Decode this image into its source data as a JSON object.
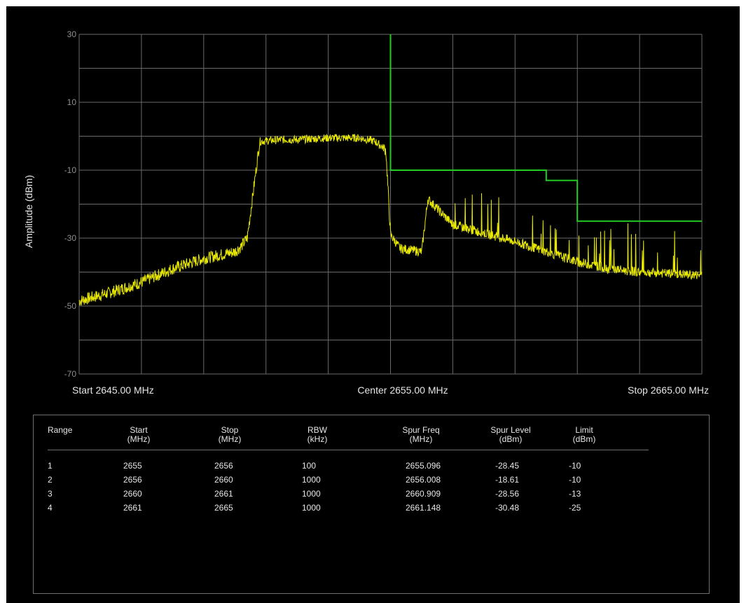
{
  "chart_data": {
    "type": "line",
    "ylabel": "Amplitude (dBm)",
    "ylim": [
      -70,
      30
    ],
    "yticks": [
      "30",
      "10",
      "-10",
      "-30",
      "-50",
      "-70"
    ],
    "xlim": [
      2645.0,
      2665.0
    ],
    "x_unit": "MHz",
    "grid": true,
    "x_labels": {
      "start": "Start 2645.00 MHz",
      "center": "Center 2655.00 MHz",
      "stop": "Stop 2665.00 MHz"
    },
    "series": [
      {
        "color": "#e8e800",
        "style": "noisy spectrum trace",
        "x": [
          2645.0,
          2646.0,
          2647.0,
          2648.0,
          2649.0,
          2650.0,
          2650.2,
          2650.4,
          2650.8,
          2651.5,
          2652.0,
          2653.0,
          2654.0,
          2654.5,
          2654.85,
          2655.0,
          2655.3,
          2656.0,
          2656.2,
          2657.0,
          2658.0,
          2659.0,
          2660.0,
          2661.0,
          2662.0,
          2663.0,
          2664.0,
          2665.0
        ],
        "y": [
          -48.5,
          -46,
          -43,
          -39,
          -36,
          -34,
          -32.5,
          -30,
          -1.5,
          -1,
          -1,
          -0.5,
          -0.5,
          -1.5,
          -4,
          -29,
          -33,
          -34,
          -18.5,
          -26,
          -28.5,
          -31,
          -34,
          -37,
          -39,
          -40,
          -40.5,
          -41
        ]
      },
      {
        "color": "#22cc22",
        "style": "limit line",
        "x": [
          2655.0,
          2655.0,
          2660.0,
          2660.0,
          2661.0,
          2661.0,
          2665.0
        ],
        "y": [
          30,
          -10,
          -10,
          -13,
          -13,
          -25,
          -25
        ]
      }
    ]
  },
  "results_table": {
    "headers": [
      [
        "Range",
        ""
      ],
      [
        "Start",
        "(MHz)"
      ],
      [
        "Stop",
        "(MHz)"
      ],
      [
        "RBW",
        "(kHz)"
      ],
      [
        "Spur Freq",
        "(MHz)"
      ],
      [
        "Spur Level",
        "(dBm)"
      ],
      [
        "Limit",
        "(dBm)"
      ]
    ],
    "rows": [
      [
        "1",
        "2655",
        "2656",
        "100",
        "2655.096",
        "-28.45",
        "-10"
      ],
      [
        "2",
        "2656",
        "2660",
        "1000",
        "2656.008",
        "-18.61",
        "-10"
      ],
      [
        "3",
        "2660",
        "2661",
        "1000",
        "2660.909",
        "-28.56",
        "-13"
      ],
      [
        "4",
        "2661",
        "2665",
        "1000",
        "2661.148",
        "-30.48",
        "-25"
      ]
    ]
  }
}
